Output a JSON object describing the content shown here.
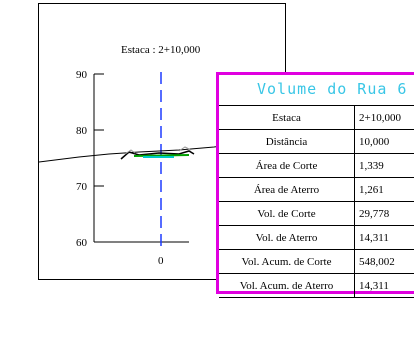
{
  "section": {
    "station_label": "Estaca : 2+10,000",
    "y_ticks": [
      "90",
      "80",
      "70",
      "60"
    ],
    "x_tick": "0",
    "colors": {
      "centerline": "#1f3cff",
      "ground": "#000000",
      "platform": "#00a000",
      "highlight": "#00c8c8"
    }
  },
  "volume_panel": {
    "title": "Volume do Rua 6",
    "border_color": "#e000e0",
    "title_color": "#39c6e6",
    "rows": [
      {
        "label": "Estaca",
        "value": "2+10,000"
      },
      {
        "label": "Distância",
        "value": "10,000"
      },
      {
        "label": "Área de Corte",
        "value": "1,339"
      },
      {
        "label": "Área de Aterro",
        "value": "1,261"
      },
      {
        "label": "Vol. de Corte",
        "value": "29,778"
      },
      {
        "label": "Vol. de Aterro",
        "value": "14,311"
      },
      {
        "label": "Vol. Acum. de Corte",
        "value": "548,002"
      },
      {
        "label": "Vol. Acum. de Aterro",
        "value": "14,311"
      }
    ]
  }
}
